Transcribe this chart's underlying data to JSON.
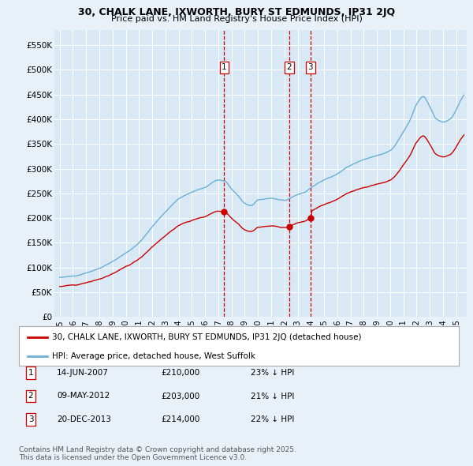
{
  "title1": "30, CHALK LANE, IXWORTH, BURY ST EDMUNDS, IP31 2JQ",
  "title2": "Price paid vs. HM Land Registry's House Price Index (HPI)",
  "legend_red": "30, CHALK LANE, IXWORTH, BURY ST EDMUNDS, IP31 2JQ (detached house)",
  "legend_blue": "HPI: Average price, detached house, West Suffolk",
  "transactions": [
    {
      "num": 1,
      "date": "14-JUN-2007",
      "price": "£210,000",
      "pct": "23% ↓ HPI",
      "year": 2007.45,
      "price_val": 210000
    },
    {
      "num": 2,
      "date": "09-MAY-2012",
      "price": "£203,000",
      "pct": "21% ↓ HPI",
      "year": 2012.36,
      "price_val": 203000
    },
    {
      "num": 3,
      "date": "20-DEC-2013",
      "price": "£214,000",
      "pct": "22% ↓ HPI",
      "year": 2013.97,
      "price_val": 214000
    }
  ],
  "footnote": "Contains HM Land Registry data © Crown copyright and database right 2025.\nThis data is licensed under the Open Government Licence v3.0.",
  "ylim": [
    0,
    580000
  ],
  "yticks": [
    0,
    50000,
    100000,
    150000,
    200000,
    250000,
    300000,
    350000,
    400000,
    450000,
    500000,
    550000
  ],
  "ytick_labels": [
    "£0",
    "£50K",
    "£100K",
    "£150K",
    "£200K",
    "£250K",
    "£300K",
    "£350K",
    "£400K",
    "£450K",
    "£500K",
    "£550K"
  ],
  "hpi_color": "#6ab0d4",
  "price_color": "#cc0000",
  "vline_color": "#cc0000",
  "background_color": "#e8f0f8",
  "plot_bg": "#d8e8f4"
}
